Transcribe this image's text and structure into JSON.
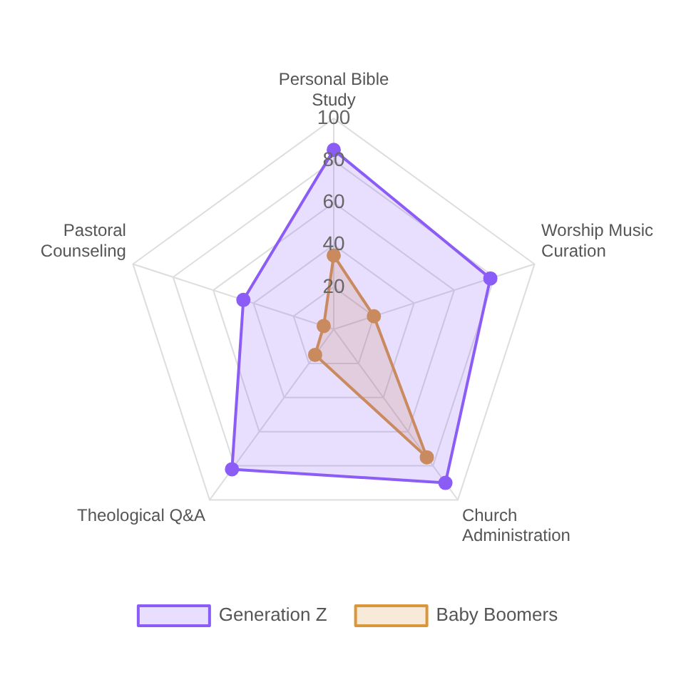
{
  "chart_data": {
    "type": "radar",
    "categories": [
      "Personal Bible Study",
      "Worship Music Curation",
      "Church Administration",
      "Theological Q&A",
      "Pastoral Counseling"
    ],
    "series": [
      {
        "name": "Generation Z",
        "color": "#8b5cf6",
        "values": [
          85,
          78,
          90,
          82,
          45
        ]
      },
      {
        "name": "Baby Boomers",
        "color": "#d9963a",
        "values": [
          35,
          20,
          75,
          15,
          5
        ]
      }
    ],
    "ylim": [
      0,
      100
    ],
    "yticks": [
      20,
      40,
      60,
      80,
      100
    ],
    "grid": true,
    "legend": "bottom",
    "marker": "circle"
  }
}
